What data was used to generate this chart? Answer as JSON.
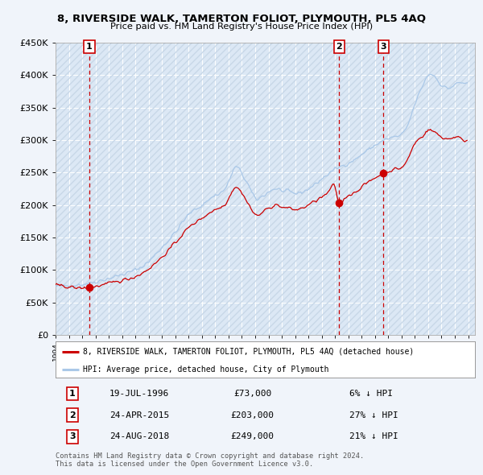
{
  "title": "8, RIVERSIDE WALK, TAMERTON FOLIOT, PLYMOUTH, PL5 4AQ",
  "subtitle": "Price paid vs. HM Land Registry's House Price Index (HPI)",
  "legend_label_red": "8, RIVERSIDE WALK, TAMERTON FOLIOT, PLYMOUTH, PL5 4AQ (detached house)",
  "legend_label_blue": "HPI: Average price, detached house, City of Plymouth",
  "footer1": "Contains HM Land Registry data © Crown copyright and database right 2024.",
  "footer2": "This data is licensed under the Open Government Licence v3.0.",
  "sales": [
    {
      "num": 1,
      "date": "19-JUL-1996",
      "price": 73000,
      "pct": "6% ↓ HPI",
      "year": 1996.54
    },
    {
      "num": 2,
      "date": "24-APR-2015",
      "price": 203000,
      "pct": "27% ↓ HPI",
      "year": 2015.31
    },
    {
      "num": 3,
      "date": "24-AUG-2018",
      "price": 249000,
      "pct": "21% ↓ HPI",
      "year": 2018.64
    }
  ],
  "xmin": 1994.0,
  "xmax": 2025.5,
  "ymin": 0,
  "ymax": 450000,
  "yticks": [
    0,
    50000,
    100000,
    150000,
    200000,
    250000,
    300000,
    350000,
    400000,
    450000
  ],
  "ytick_labels": [
    "£0",
    "£50K",
    "£100K",
    "£150K",
    "£200K",
    "£250K",
    "£300K",
    "£350K",
    "£400K",
    "£450K"
  ],
  "bg_color": "#f0f4fa",
  "plot_bg_color": "#dce8f5",
  "grid_color": "#ffffff",
  "hatch_color": "#c8d8e8",
  "red_color": "#cc0000",
  "blue_color": "#aac8e8",
  "marker_red": "#cc0000",
  "sale_box_color": "#cc0000"
}
